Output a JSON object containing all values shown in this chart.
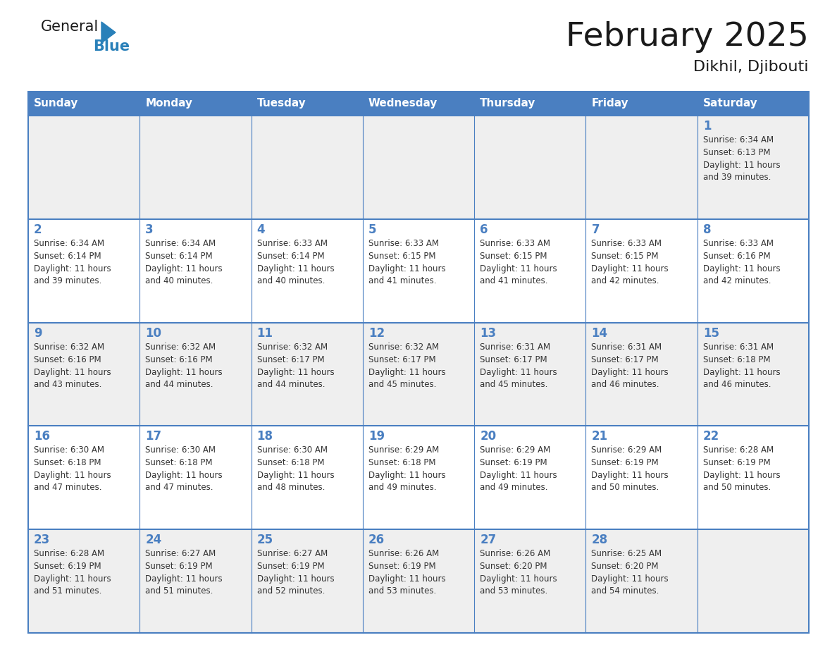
{
  "title": "February 2025",
  "subtitle": "Dikhil, Djibouti",
  "days_of_week": [
    "Sunday",
    "Monday",
    "Tuesday",
    "Wednesday",
    "Thursday",
    "Friday",
    "Saturday"
  ],
  "header_bg": "#4a7fc1",
  "header_text": "#FFFFFF",
  "cell_bg_light": "#EFEFEF",
  "cell_bg_white": "#FFFFFF",
  "cell_border": "#4a7fc1",
  "title_color": "#1a1a1a",
  "text_color": "#333333",
  "day_color": "#4a7fc1",
  "calendar_data": [
    [
      null,
      null,
      null,
      null,
      null,
      null,
      {
        "day": 1,
        "sunrise": "6:34 AM",
        "sunset": "6:13 PM",
        "daylight_h": "11 hours",
        "daylight_m": "and 39 minutes."
      }
    ],
    [
      {
        "day": 2,
        "sunrise": "6:34 AM",
        "sunset": "6:14 PM",
        "daylight_h": "11 hours",
        "daylight_m": "and 39 minutes."
      },
      {
        "day": 3,
        "sunrise": "6:34 AM",
        "sunset": "6:14 PM",
        "daylight_h": "11 hours",
        "daylight_m": "and 40 minutes."
      },
      {
        "day": 4,
        "sunrise": "6:33 AM",
        "sunset": "6:14 PM",
        "daylight_h": "11 hours",
        "daylight_m": "and 40 minutes."
      },
      {
        "day": 5,
        "sunrise": "6:33 AM",
        "sunset": "6:15 PM",
        "daylight_h": "11 hours",
        "daylight_m": "and 41 minutes."
      },
      {
        "day": 6,
        "sunrise": "6:33 AM",
        "sunset": "6:15 PM",
        "daylight_h": "11 hours",
        "daylight_m": "and 41 minutes."
      },
      {
        "day": 7,
        "sunrise": "6:33 AM",
        "sunset": "6:15 PM",
        "daylight_h": "11 hours",
        "daylight_m": "and 42 minutes."
      },
      {
        "day": 8,
        "sunrise": "6:33 AM",
        "sunset": "6:16 PM",
        "daylight_h": "11 hours",
        "daylight_m": "and 42 minutes."
      }
    ],
    [
      {
        "day": 9,
        "sunrise": "6:32 AM",
        "sunset": "6:16 PM",
        "daylight_h": "11 hours",
        "daylight_m": "and 43 minutes."
      },
      {
        "day": 10,
        "sunrise": "6:32 AM",
        "sunset": "6:16 PM",
        "daylight_h": "11 hours",
        "daylight_m": "and 44 minutes."
      },
      {
        "day": 11,
        "sunrise": "6:32 AM",
        "sunset": "6:17 PM",
        "daylight_h": "11 hours",
        "daylight_m": "and 44 minutes."
      },
      {
        "day": 12,
        "sunrise": "6:32 AM",
        "sunset": "6:17 PM",
        "daylight_h": "11 hours",
        "daylight_m": "and 45 minutes."
      },
      {
        "day": 13,
        "sunrise": "6:31 AM",
        "sunset": "6:17 PM",
        "daylight_h": "11 hours",
        "daylight_m": "and 45 minutes."
      },
      {
        "day": 14,
        "sunrise": "6:31 AM",
        "sunset": "6:17 PM",
        "daylight_h": "11 hours",
        "daylight_m": "and 46 minutes."
      },
      {
        "day": 15,
        "sunrise": "6:31 AM",
        "sunset": "6:18 PM",
        "daylight_h": "11 hours",
        "daylight_m": "and 46 minutes."
      }
    ],
    [
      {
        "day": 16,
        "sunrise": "6:30 AM",
        "sunset": "6:18 PM",
        "daylight_h": "11 hours",
        "daylight_m": "and 47 minutes."
      },
      {
        "day": 17,
        "sunrise": "6:30 AM",
        "sunset": "6:18 PM",
        "daylight_h": "11 hours",
        "daylight_m": "and 47 minutes."
      },
      {
        "day": 18,
        "sunrise": "6:30 AM",
        "sunset": "6:18 PM",
        "daylight_h": "11 hours",
        "daylight_m": "and 48 minutes."
      },
      {
        "day": 19,
        "sunrise": "6:29 AM",
        "sunset": "6:18 PM",
        "daylight_h": "11 hours",
        "daylight_m": "and 49 minutes."
      },
      {
        "day": 20,
        "sunrise": "6:29 AM",
        "sunset": "6:19 PM",
        "daylight_h": "11 hours",
        "daylight_m": "and 49 minutes."
      },
      {
        "day": 21,
        "sunrise": "6:29 AM",
        "sunset": "6:19 PM",
        "daylight_h": "11 hours",
        "daylight_m": "and 50 minutes."
      },
      {
        "day": 22,
        "sunrise": "6:28 AM",
        "sunset": "6:19 PM",
        "daylight_h": "11 hours",
        "daylight_m": "and 50 minutes."
      }
    ],
    [
      {
        "day": 23,
        "sunrise": "6:28 AM",
        "sunset": "6:19 PM",
        "daylight_h": "11 hours",
        "daylight_m": "and 51 minutes."
      },
      {
        "day": 24,
        "sunrise": "6:27 AM",
        "sunset": "6:19 PM",
        "daylight_h": "11 hours",
        "daylight_m": "and 51 minutes."
      },
      {
        "day": 25,
        "sunrise": "6:27 AM",
        "sunset": "6:19 PM",
        "daylight_h": "11 hours",
        "daylight_m": "and 52 minutes."
      },
      {
        "day": 26,
        "sunrise": "6:26 AM",
        "sunset": "6:19 PM",
        "daylight_h": "11 hours",
        "daylight_m": "and 53 minutes."
      },
      {
        "day": 27,
        "sunrise": "6:26 AM",
        "sunset": "6:20 PM",
        "daylight_h": "11 hours",
        "daylight_m": "and 53 minutes."
      },
      {
        "day": 28,
        "sunrise": "6:25 AM",
        "sunset": "6:20 PM",
        "daylight_h": "11 hours",
        "daylight_m": "and 54 minutes."
      },
      null
    ]
  ],
  "logo_color1": "#1a1a1a",
  "logo_color2": "#2980B9",
  "logo_tri_color": "#2980B9"
}
